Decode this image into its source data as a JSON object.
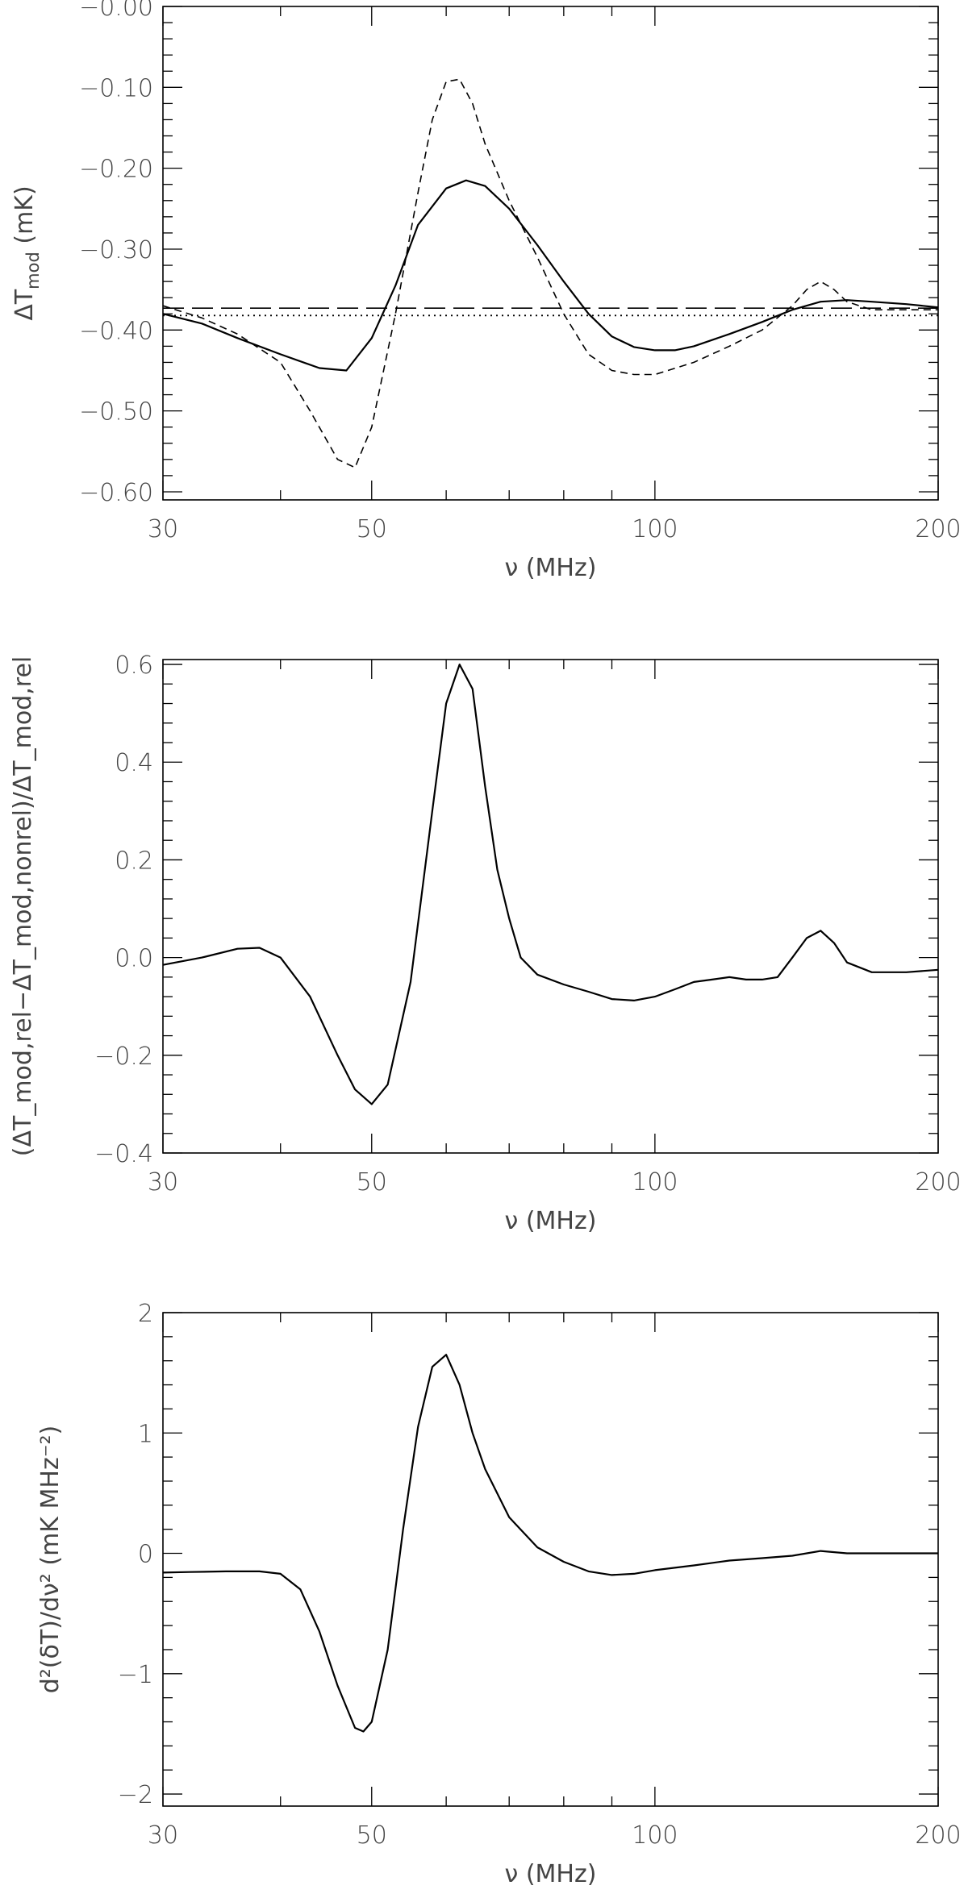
{
  "chart_data": [
    {
      "type": "line",
      "xscale": "log",
      "xlim": [
        30,
        200
      ],
      "ylim": [
        -0.61,
        0.0
      ],
      "xticks": [
        {
          "value": 30,
          "label": "30"
        },
        {
          "value": 50,
          "label": "50"
        },
        {
          "value": 100,
          "label": "100"
        },
        {
          "value": 200,
          "label": "200"
        }
      ],
      "yticks": [
        {
          "value": 0.0,
          "label": "−0.00"
        },
        {
          "value": -0.1,
          "label": "−0.10"
        },
        {
          "value": -0.2,
          "label": "−0.20"
        },
        {
          "value": -0.3,
          "label": "−0.30"
        },
        {
          "value": -0.4,
          "label": "−0.40"
        },
        {
          "value": -0.5,
          "label": "−0.50"
        },
        {
          "value": -0.6,
          "label": "−0.60"
        }
      ],
      "xlabel": "ν (MHz)",
      "ylabel": {
        "main": "ΔT",
        "sub": "mod",
        "tail": " (mK)"
      },
      "series": [
        {
          "style": "solid",
          "x": [
            30,
            33,
            36,
            40,
            44,
            47,
            50,
            53,
            56,
            60,
            63,
            66,
            70,
            75,
            80,
            85,
            90,
            95,
            100,
            105,
            110,
            120,
            130,
            140,
            150,
            160,
            170,
            185,
            200
          ],
          "y": [
            -0.38,
            -0.392,
            -0.41,
            -0.43,
            -0.447,
            -0.45,
            -0.41,
            -0.345,
            -0.27,
            -0.225,
            -0.215,
            -0.222,
            -0.25,
            -0.295,
            -0.34,
            -0.38,
            -0.408,
            -0.421,
            -0.425,
            -0.425,
            -0.42,
            -0.405,
            -0.39,
            -0.375,
            -0.365,
            -0.363,
            -0.365,
            -0.368,
            -0.372
          ]
        },
        {
          "style": "dashed",
          "x": [
            30,
            33,
            36,
            40,
            43,
            46,
            48,
            50,
            53,
            56,
            58,
            60,
            62,
            64,
            66,
            70,
            75,
            80,
            85,
            90,
            95,
            100,
            110,
            120,
            130,
            140,
            145,
            150,
            155,
            160,
            170,
            200
          ],
          "y": [
            -0.37,
            -0.385,
            -0.405,
            -0.44,
            -0.5,
            -0.56,
            -0.57,
            -0.52,
            -0.38,
            -0.23,
            -0.14,
            -0.093,
            -0.09,
            -0.12,
            -0.17,
            -0.24,
            -0.31,
            -0.38,
            -0.43,
            -0.45,
            -0.455,
            -0.455,
            -0.44,
            -0.42,
            -0.4,
            -0.37,
            -0.35,
            -0.34,
            -0.35,
            -0.365,
            -0.375,
            -0.375
          ]
        },
        {
          "style": "longdash",
          "x": [
            30,
            200
          ],
          "y": [
            -0.373,
            -0.373
          ]
        },
        {
          "style": "dotted",
          "x": [
            30,
            200
          ],
          "y": [
            -0.382,
            -0.382
          ]
        }
      ]
    },
    {
      "type": "line",
      "xscale": "log",
      "xlim": [
        30,
        200
      ],
      "ylim": [
        -0.4,
        0.61
      ],
      "xticks": [
        {
          "value": 30,
          "label": "30"
        },
        {
          "value": 50,
          "label": "50"
        },
        {
          "value": 100,
          "label": "100"
        },
        {
          "value": 200,
          "label": "200"
        }
      ],
      "yticks": [
        {
          "value": 0.6,
          "label": "0.6"
        },
        {
          "value": 0.4,
          "label": "0.4"
        },
        {
          "value": 0.2,
          "label": "0.2"
        },
        {
          "value": 0.0,
          "label": "0.0"
        },
        {
          "value": -0.2,
          "label": "−0.2"
        },
        {
          "value": -0.4,
          "label": "−0.4"
        }
      ],
      "xlabel": "ν (MHz)",
      "ylabel": {
        "text": "(ΔT_mod,rel−ΔT_mod,nonrel)/ΔT_mod,rel"
      },
      "series": [
        {
          "style": "solid",
          "x": [
            30,
            33,
            36,
            38,
            40,
            43,
            46,
            48,
            50,
            52,
            55,
            58,
            60,
            62,
            64,
            66,
            68,
            70,
            72,
            75,
            80,
            85,
            90,
            95,
            100,
            105,
            110,
            115,
            120,
            125,
            130,
            135,
            140,
            145,
            150,
            155,
            160,
            170,
            185,
            200
          ],
          "y": [
            -0.015,
            0.0,
            0.018,
            0.02,
            0.0,
            -0.08,
            -0.2,
            -0.27,
            -0.3,
            -0.26,
            -0.05,
            0.3,
            0.52,
            0.6,
            0.55,
            0.35,
            0.18,
            0.08,
            0.0,
            -0.035,
            -0.055,
            -0.07,
            -0.085,
            -0.088,
            -0.08,
            -0.065,
            -0.05,
            -0.045,
            -0.04,
            -0.045,
            -0.045,
            -0.04,
            0.0,
            0.04,
            0.055,
            0.03,
            -0.01,
            -0.03,
            -0.03,
            -0.025
          ]
        }
      ]
    },
    {
      "type": "line",
      "xscale": "log",
      "xlim": [
        30,
        200
      ],
      "ylim": [
        -2.1,
        2.0
      ],
      "xticks": [
        {
          "value": 30,
          "label": "30"
        },
        {
          "value": 50,
          "label": "50"
        },
        {
          "value": 100,
          "label": "100"
        },
        {
          "value": 200,
          "label": "200"
        }
      ],
      "yticks": [
        {
          "value": 2,
          "label": "2"
        },
        {
          "value": 1,
          "label": "1"
        },
        {
          "value": 0,
          "label": "0"
        },
        {
          "value": -1,
          "label": "−1"
        },
        {
          "value": -2,
          "label": "−2"
        }
      ],
      "xlabel": "ν (MHz)",
      "ylabel": {
        "text": "d²(δT)/dν² (mK MHz⁻²)"
      },
      "series": [
        {
          "style": "solid",
          "x": [
            30,
            32,
            35,
            38,
            40,
            42,
            44,
            46,
            48,
            49,
            50,
            52,
            54,
            56,
            58,
            60,
            62,
            64,
            66,
            70,
            75,
            80,
            85,
            90,
            95,
            100,
            110,
            120,
            130,
            140,
            150,
            160,
            170,
            185,
            200
          ],
          "y": [
            -0.16,
            -0.155,
            -0.15,
            -0.15,
            -0.17,
            -0.3,
            -0.65,
            -1.1,
            -1.45,
            -1.48,
            -1.4,
            -0.8,
            0.2,
            1.05,
            1.55,
            1.65,
            1.4,
            1.0,
            0.7,
            0.3,
            0.05,
            -0.07,
            -0.15,
            -0.18,
            -0.17,
            -0.14,
            -0.1,
            -0.06,
            -0.04,
            -0.02,
            0.02,
            0.0,
            0.0,
            0.0,
            0.0
          ]
        }
      ]
    }
  ]
}
